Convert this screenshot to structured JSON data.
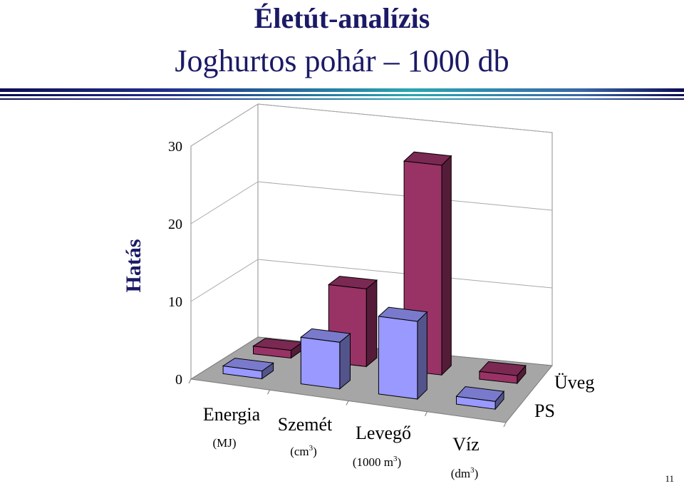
{
  "slide": {
    "title": "Életút-analízis",
    "subtitle": "Joghurtos pohár – 1000 db",
    "page_number": "11",
    "accent_color": "#1a1a66"
  },
  "chart_data": {
    "type": "bar",
    "style": "3d-clustered",
    "title": "",
    "ylabel": "Hatás",
    "xlabel": "",
    "ylim": [
      0,
      30
    ],
    "yticks": [
      "0",
      "10",
      "20",
      "30"
    ],
    "grid": "on",
    "categories": [
      {
        "name": "Energia",
        "unit": "(MJ)"
      },
      {
        "name": "Szemét",
        "unit": "(cm",
        "unit_sup": "3",
        "unit_end": ")"
      },
      {
        "name": "Levegő",
        "unit": "(1000 m",
        "unit_sup": "3",
        "unit_end": ")"
      },
      {
        "name": "Víz",
        "unit": "(dm",
        "unit_sup": "3",
        "unit_end": ")"
      }
    ],
    "series": [
      {
        "name": "PS",
        "color": "#9999ff",
        "values": [
          1,
          6,
          10,
          1
        ]
      },
      {
        "name": "Üveg",
        "color": "#993366",
        "values": [
          1,
          10,
          27,
          1
        ]
      }
    ]
  }
}
